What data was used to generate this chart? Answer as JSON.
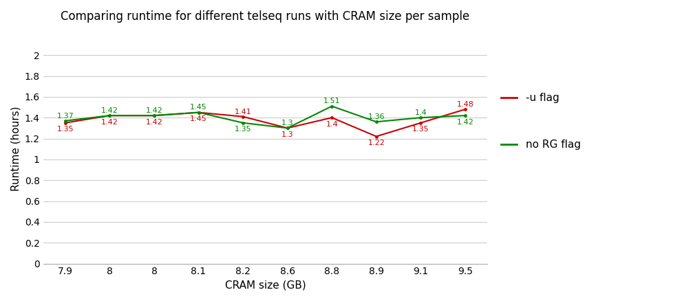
{
  "title": "Comparing runtime for different telseq runs with CRAM size per sample",
  "xlabel": "CRAM size (GB)",
  "ylabel": "Runtime (hours)",
  "x_labels": [
    "7.9",
    "8",
    "8",
    "8.1",
    "8.2",
    "8.6",
    "8.8",
    "8.9",
    "9.1",
    "9.5"
  ],
  "x_positions": [
    0,
    1,
    2,
    3,
    4,
    5,
    6,
    7,
    8,
    9
  ],
  "u_flag": [
    1.35,
    1.42,
    1.42,
    1.45,
    1.41,
    1.3,
    1.4,
    1.22,
    1.35,
    1.48
  ],
  "no_rg_flag": [
    1.37,
    1.42,
    1.42,
    1.45,
    1.35,
    1.3,
    1.51,
    1.36,
    1.4,
    1.42
  ],
  "u_flag_labels": [
    "1.35",
    "1.42",
    "1.42",
    "1.45",
    "1.41",
    "1.3",
    "1.4",
    "1.22",
    "1.35",
    "1.48"
  ],
  "no_rg_flag_labels": [
    "1.37",
    "1.42",
    "1.42",
    "1.45",
    "1.35",
    "1.3",
    "1.51",
    "1.36",
    "1.4",
    "1.42"
  ],
  "u_flag_color": "#cc0000",
  "no_rg_flag_color": "#008800",
  "ylim": [
    0,
    2.2
  ],
  "yticks": [
    0,
    0.2,
    0.4,
    0.6,
    0.8,
    1.0,
    1.2,
    1.4,
    1.6,
    1.8,
    2.0
  ],
  "legend_u": "-u flag",
  "legend_no_rg": "no RG flag",
  "background_color": "#ffffff",
  "grid_color": "#cccccc",
  "label_fontsize": 8,
  "title_fontsize": 12,
  "axis_fontsize": 11,
  "tick_fontsize": 10
}
